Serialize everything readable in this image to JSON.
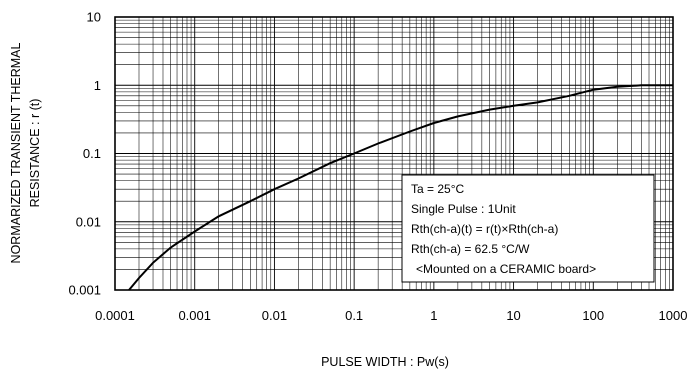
{
  "chart_data": {
    "type": "line",
    "xscale": "log",
    "yscale": "log",
    "xlim": [
      0.0001,
      1000
    ],
    "ylim": [
      0.001,
      10
    ],
    "grid": true,
    "xlabel": "PULSE WIDTH : Pw(s)",
    "ylabel_lines": [
      "NORMARIZED TRANSIENT THERMAL",
      "RESISTANCE : r (t)"
    ],
    "x_ticks": [
      "0.0001",
      "0.001",
      "0.01",
      "0.1",
      "1",
      "10",
      "100",
      "1000"
    ],
    "y_ticks": [
      "0.001",
      "0.01",
      "0.1",
      "1",
      "10"
    ],
    "series": [
      {
        "x": [
          0.00015,
          0.0002,
          0.0003,
          0.0005,
          0.001,
          0.002,
          0.005,
          0.01,
          0.02,
          0.05,
          0.1,
          0.2,
          0.5,
          1,
          2,
          5,
          10,
          20,
          50,
          100,
          200,
          400,
          700,
          1000
        ],
        "y": [
          0.001,
          0.0015,
          0.0025,
          0.0042,
          0.0072,
          0.012,
          0.02,
          0.03,
          0.043,
          0.072,
          0.1,
          0.14,
          0.21,
          0.28,
          0.35,
          0.44,
          0.5,
          0.56,
          0.7,
          0.86,
          0.95,
          1.0,
          1.0,
          1.0
        ]
      }
    ],
    "legend_lines": [
      "Ta = 25°C",
      "Single Pulse : 1Unit",
      "Rth(ch-a)(t) = r(t)×Rth(ch-a)",
      "Rth(ch-a) = 62.5 °C/W",
      "<Mounted on a CERAMIC board>"
    ],
    "legend_position": "bottom-right"
  }
}
